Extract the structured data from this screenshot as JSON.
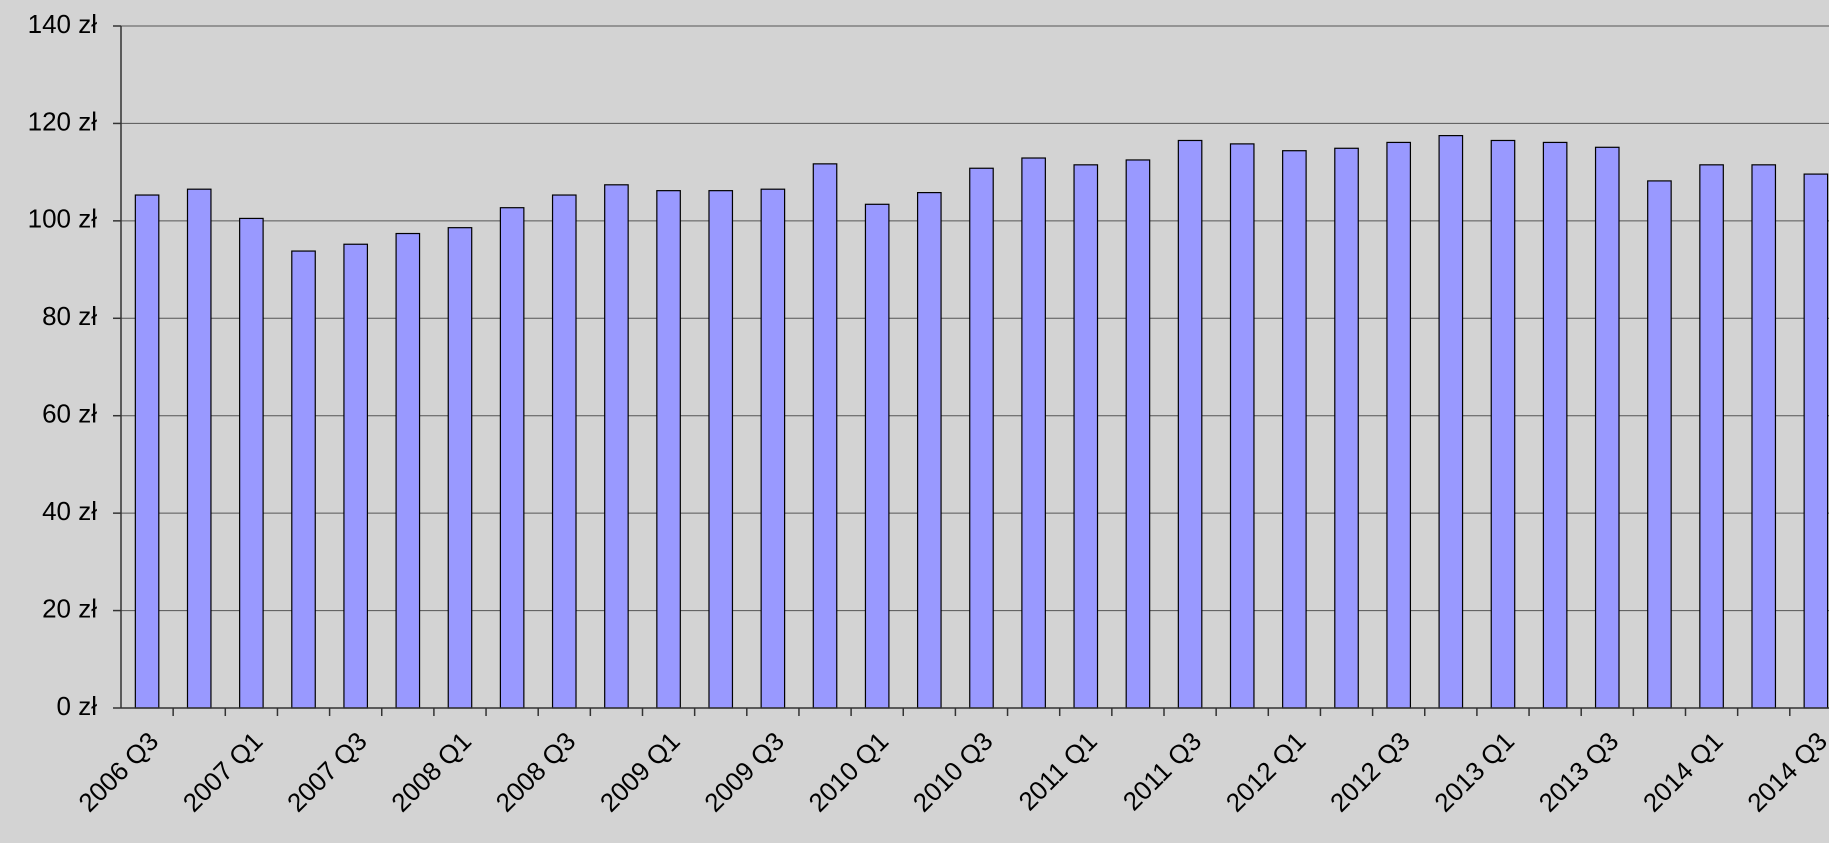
{
  "chart_data": {
    "type": "bar",
    "categories": [
      "2006 Q3",
      null,
      "2007 Q1",
      null,
      "2007 Q3",
      null,
      "2008 Q1",
      null,
      "2008 Q3",
      null,
      "2009 Q1",
      null,
      "2009 Q3",
      null,
      "2010 Q1",
      null,
      "2010 Q3",
      null,
      "2011 Q1",
      null,
      "2011 Q3",
      null,
      "2012 Q1",
      null,
      "2012 Q3",
      null,
      "2013 Q1",
      null,
      "2013 Q3",
      null,
      "2014 Q1",
      null,
      "2014 Q3"
    ],
    "values": [
      105.3,
      106.5,
      100.5,
      93.8,
      95.2,
      97.4,
      98.6,
      102.7,
      105.3,
      107.4,
      106.2,
      106.2,
      106.5,
      111.7,
      103.4,
      105.8,
      110.8,
      112.9,
      111.5,
      112.5,
      116.5,
      115.8,
      114.4,
      114.9,
      116.1,
      117.5,
      116.5,
      116.1,
      115.1,
      108.2,
      111.5,
      111.5,
      109.6
    ],
    "color": "#9999ff",
    "ylim": [
      0,
      140
    ],
    "yticks": [
      {
        "value": 0,
        "label": "0 zł"
      },
      {
        "value": 20,
        "label": "20 zł"
      },
      {
        "value": 40,
        "label": "40 zł"
      },
      {
        "value": 60,
        "label": "60 zł"
      },
      {
        "value": 80,
        "label": "80 zł"
      },
      {
        "value": 100,
        "label": "100 zł"
      },
      {
        "value": 120,
        "label": "120 zł"
      },
      {
        "value": 140,
        "label": "140 zł"
      }
    ],
    "grid": true
  }
}
